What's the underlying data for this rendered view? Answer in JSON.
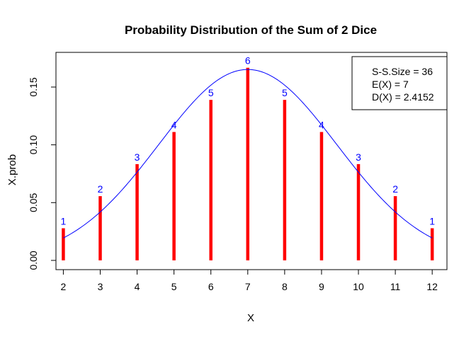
{
  "chart_data": {
    "type": "bar",
    "title": "Probability Distribution of the Sum of 2 Dice",
    "xlabel": "X",
    "ylabel": "X.prob",
    "x": [
      2,
      3,
      4,
      5,
      6,
      7,
      8,
      9,
      10,
      11,
      12
    ],
    "values": [
      0.0278,
      0.0556,
      0.0833,
      0.1111,
      0.1389,
      0.1667,
      0.1389,
      0.1111,
      0.0833,
      0.0556,
      0.0278
    ],
    "counts": [
      1,
      2,
      3,
      4,
      5,
      6,
      5,
      4,
      3,
      2,
      1
    ],
    "xlim": [
      1.8,
      12.4
    ],
    "ylim": [
      -0.008,
      0.18
    ],
    "yticks": [
      "0.00",
      "0.05",
      "0.10",
      "0.15"
    ],
    "ytick_values": [
      0,
      0.05,
      0.1,
      0.15
    ],
    "xticks": [
      "2",
      "3",
      "4",
      "5",
      "6",
      "7",
      "8",
      "9",
      "10",
      "11",
      "12"
    ],
    "curve": {
      "type": "normal-density",
      "mean": 7,
      "sd": 2.4152,
      "color": "#0000ff"
    },
    "bar_color": "#ff0000",
    "label_color": "#0000ff",
    "legend": {
      "position": "top-right",
      "lines": [
        "S-S.Size = 36",
        "E(X) = 7",
        "D(X) = 2.4152"
      ]
    },
    "grid": false
  }
}
